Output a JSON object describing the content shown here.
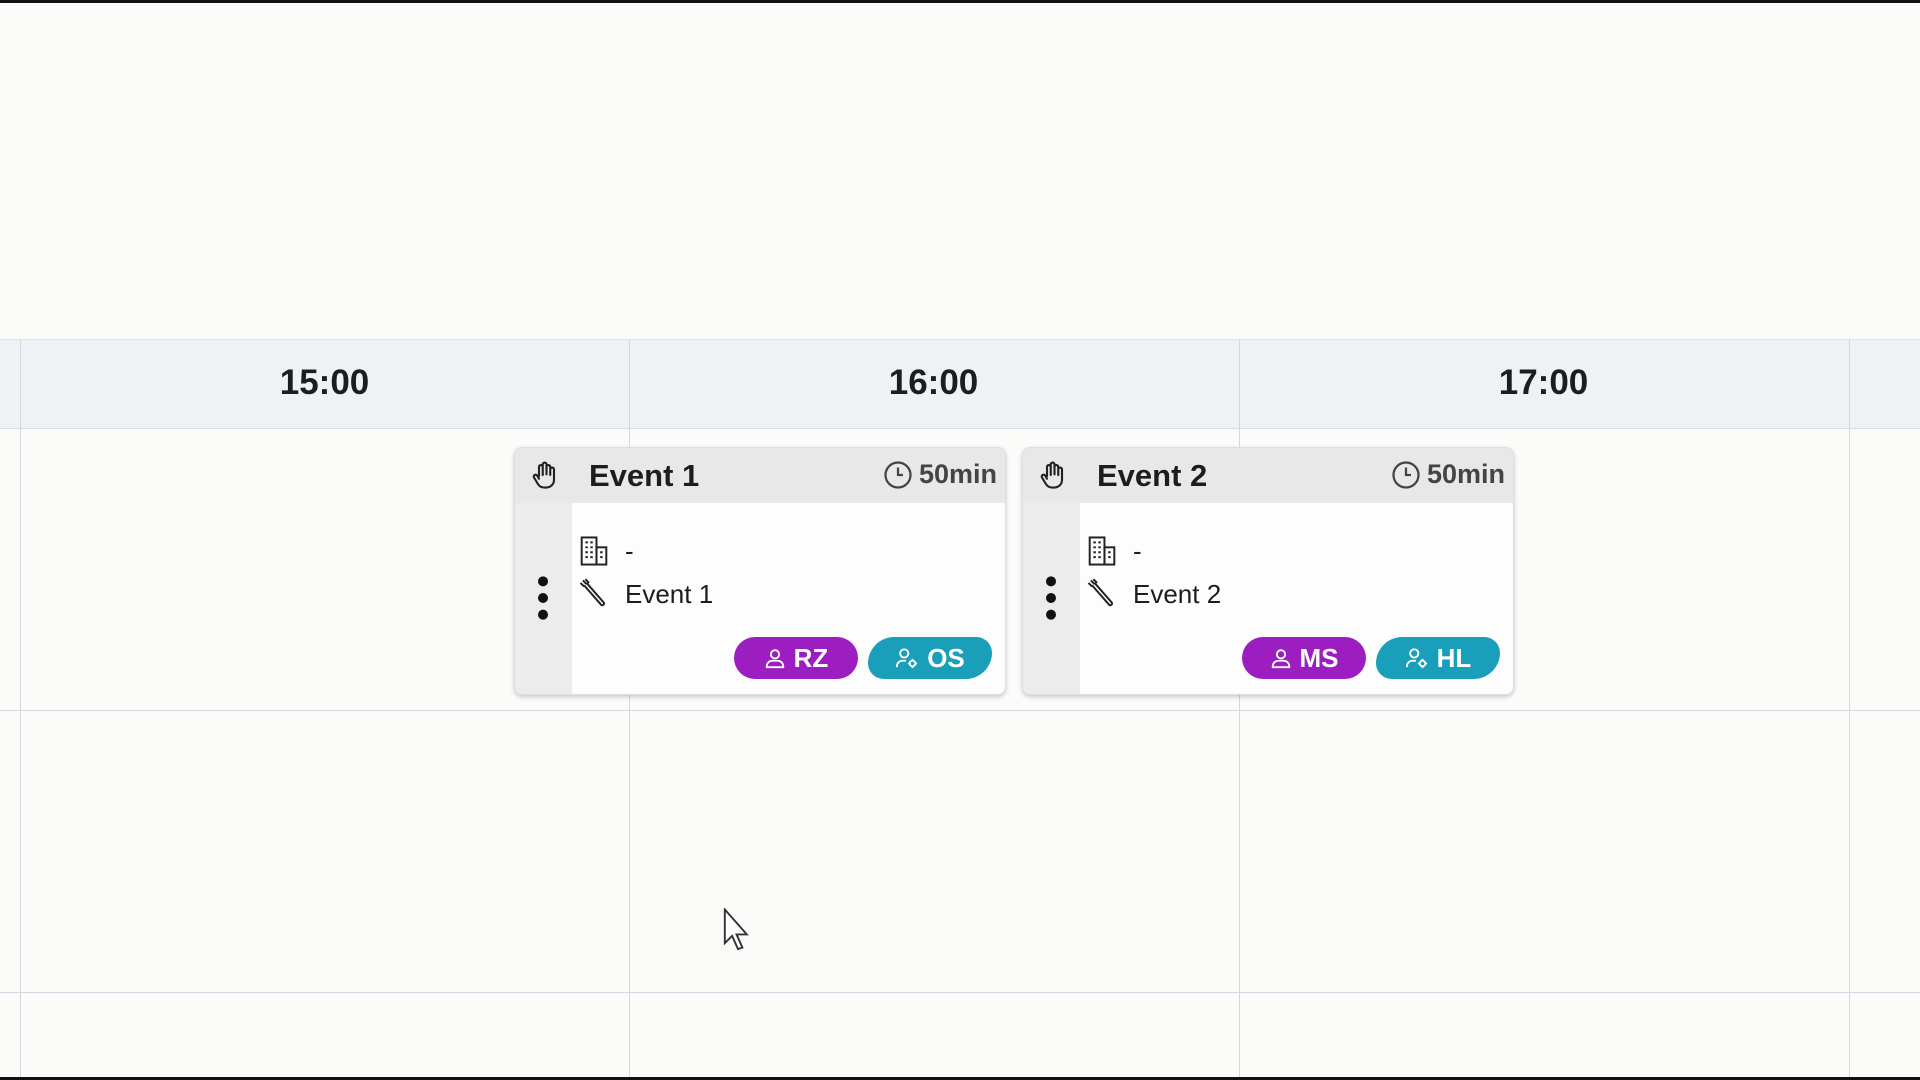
{
  "timeline": {
    "hours": [
      "15:00",
      "16:00",
      "17:00"
    ]
  },
  "events": [
    {
      "title": "Event 1",
      "duration": "50min",
      "location": "-",
      "service": "Event 1",
      "badges": [
        {
          "initials": "RZ",
          "type": "person",
          "color": "#9c1ec0"
        },
        {
          "initials": "OS",
          "type": "person-gear",
          "color": "#1a9fba"
        }
      ]
    },
    {
      "title": "Event 2",
      "duration": "50min",
      "location": "-",
      "service": "Event 2",
      "badges": [
        {
          "initials": "MS",
          "type": "person",
          "color": "#9c1ec0"
        },
        {
          "initials": "HL",
          "type": "person-gear",
          "color": "#1a9fba"
        }
      ]
    }
  ]
}
